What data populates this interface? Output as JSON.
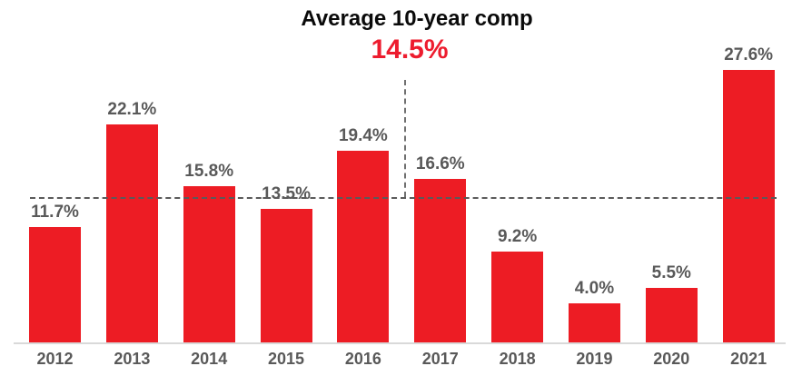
{
  "chart_data": {
    "type": "bar",
    "title": "Average 10-year comp",
    "average_label": "14.5%",
    "average_value": 14.5,
    "categories": [
      "2012",
      "2013",
      "2014",
      "2015",
      "2016",
      "2017",
      "2018",
      "2019",
      "2020",
      "2021"
    ],
    "values": [
      11.7,
      22.1,
      15.8,
      13.5,
      19.4,
      16.6,
      9.2,
      4.0,
      5.5,
      27.6
    ],
    "value_labels": [
      "11.7%",
      "22.1%",
      "15.8%",
      "13.5%",
      "19.4%",
      "16.6%",
      "9.2%",
      "4.0%",
      "5.5%",
      "27.6%"
    ],
    "xlabel": "",
    "ylabel": "",
    "ylim": [
      0,
      29
    ],
    "grid": false,
    "legend": "none",
    "annotations": {
      "reference_line": "dashed horizontal line at 14.5% average, drawn over bars",
      "callout_line": "dashed vertical line from average label down to reference line"
    },
    "colors": {
      "bar": "#ED1C24",
      "average_text": "#ED1C2E",
      "title_text": "#0a0a0a",
      "data_label": "#595959",
      "dash_line": "#5a5a5a",
      "axis_line": "#D9D9D9",
      "background": "#FFFFFF"
    }
  }
}
